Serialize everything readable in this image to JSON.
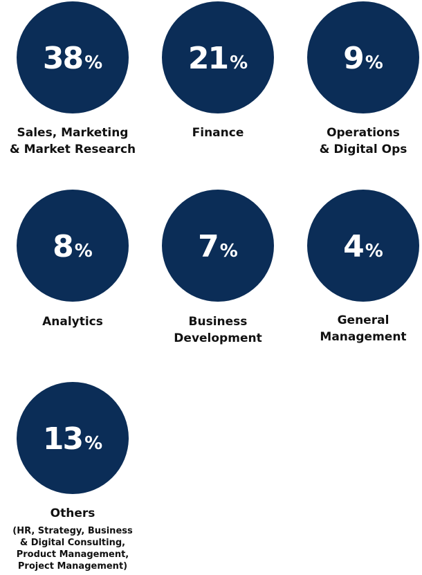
{
  "items": [
    {
      "value": 38,
      "unit": "%",
      "label": [
        "Sales, Marketing",
        "& Market Research"
      ]
    },
    {
      "value": 21,
      "unit": "%",
      "label": [
        "Finance"
      ]
    },
    {
      "value": 9,
      "unit": "%",
      "label": [
        "Operations",
        "& Digital Ops"
      ]
    },
    {
      "value": 8,
      "unit": "%",
      "label": [
        "Analytics"
      ]
    },
    {
      "value": 7,
      "unit": "%",
      "label": [
        "Business",
        "Development"
      ]
    },
    {
      "value": 4,
      "unit": "%",
      "label": [
        "General",
        "Management"
      ]
    },
    {
      "value": 13,
      "unit": "%",
      "label": [
        "Others"
      ],
      "note": [
        "(HR, Strategy, Business",
        "& Digital Consulting,",
        "Product Management,",
        "Project Management)"
      ]
    }
  ]
}
